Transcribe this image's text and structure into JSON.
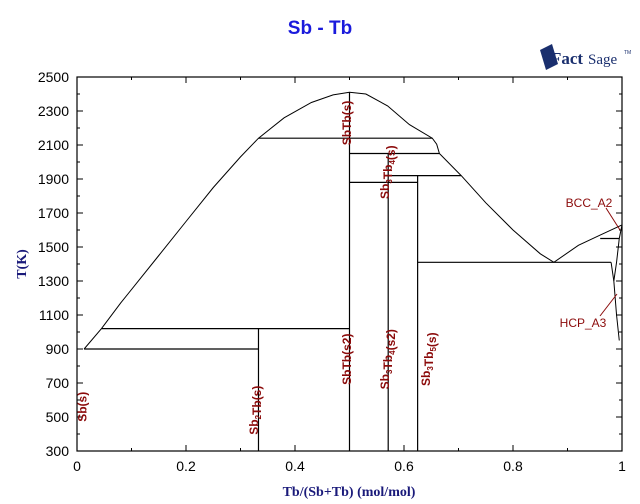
{
  "header": {
    "title": "Sb - Tb",
    "logo_text_bold": "Fact",
    "logo_text_light": "Sage",
    "logo_tm": "TM"
  },
  "chart_data": {
    "type": "line",
    "title": "Sb - Tb",
    "xlabel": "Tb/(Sb+Tb) (mol/mol)",
    "ylabel": "T(K)",
    "xlim": [
      0,
      1
    ],
    "ylim": [
      300,
      2500
    ],
    "x_ticks": [
      "0",
      "0.2",
      "0.4",
      "0.6",
      "0.8",
      "1"
    ],
    "y_ticks": [
      "300",
      "500",
      "700",
      "900",
      "1100",
      "1300",
      "1500",
      "1700",
      "1900",
      "2100",
      "2300",
      "2500"
    ],
    "grid": false,
    "phase_labels": [
      {
        "text": "Sb(s)",
        "x": 0.01,
        "T": 560
      },
      {
        "text": "Sb2Tb(s)",
        "x": 0.325,
        "T": 540
      },
      {
        "text": "SbTb(s2)",
        "x": 0.495,
        "T": 840
      },
      {
        "text": "Sb3Tb4(s2)",
        "x": 0.565,
        "T": 840
      },
      {
        "text": "Sb3Tb5(s)",
        "x": 0.64,
        "T": 840
      },
      {
        "text": "SbTb(s)",
        "x": 0.495,
        "T": 2230
      },
      {
        "text": "Sb3Tb4(s)",
        "x": 0.565,
        "T": 1940
      },
      {
        "text": "BCC_A2",
        "x": 0.95,
        "T": 1580
      },
      {
        "text": "HCP_A3",
        "x": 0.93,
        "T": 1000
      }
    ],
    "liquidus": [
      {
        "x": 0.013,
        "T": 900
      },
      {
        "x": 0.045,
        "T": 1020
      },
      {
        "x": 0.08,
        "T": 1170
      },
      {
        "x": 0.15,
        "T": 1450
      },
      {
        "x": 0.2,
        "T": 1650
      },
      {
        "x": 0.25,
        "T": 1850
      },
      {
        "x": 0.3,
        "T": 2030
      },
      {
        "x": 0.333,
        "T": 2140
      },
      {
        "x": 0.38,
        "T": 2260
      },
      {
        "x": 0.43,
        "T": 2350
      },
      {
        "x": 0.47,
        "T": 2395
      },
      {
        "x": 0.5,
        "T": 2410
      },
      {
        "x": 0.53,
        "T": 2400
      },
      {
        "x": 0.57,
        "T": 2330
      },
      {
        "x": 0.61,
        "T": 2220
      },
      {
        "x": 0.652,
        "T": 2140
      },
      {
        "x": 0.66,
        "T": 2105
      },
      {
        "x": 0.665,
        "T": 2050
      },
      {
        "x": 0.705,
        "T": 1920
      },
      {
        "x": 0.75,
        "T": 1760
      },
      {
        "x": 0.8,
        "T": 1600
      },
      {
        "x": 0.85,
        "T": 1460
      },
      {
        "x": 0.875,
        "T": 1410
      },
      {
        "x": 0.92,
        "T": 1510
      },
      {
        "x": 0.96,
        "T": 1570
      },
      {
        "x": 1.0,
        "T": 1630
      }
    ],
    "invariant_lines": [
      {
        "T": 900,
        "x_from": 0.013,
        "x_to": 0.333
      },
      {
        "T": 1020,
        "x_from": 0.045,
        "x_to": 0.5
      },
      {
        "T": 2140,
        "x_from": 0.333,
        "x_to": 0.652
      },
      {
        "T": 2050,
        "x_from": 0.5,
        "x_to": 0.665
      },
      {
        "T": 1920,
        "x_from": 0.571,
        "x_to": 0.705
      },
      {
        "T": 1880,
        "x_from": 0.5,
        "x_to": 0.625
      },
      {
        "T": 1410,
        "x_from": 0.625,
        "x_to": 0.98
      },
      {
        "T": 1550,
        "x_from": 0.96,
        "x_to": 0.995
      }
    ],
    "compound_lines": [
      {
        "name": "Sb2Tb",
        "x": 0.333,
        "T_from": 300,
        "T_to": 1020
      },
      {
        "name": "SbTb",
        "x": 0.5,
        "T_from": 300,
        "T_to": 2410
      },
      {
        "name": "Sb3Tb4",
        "x": 0.571,
        "T_from": 300,
        "T_to": 2050
      },
      {
        "name": "Sb3Tb5",
        "x": 0.625,
        "T_from": 300,
        "T_to": 1920
      }
    ]
  }
}
